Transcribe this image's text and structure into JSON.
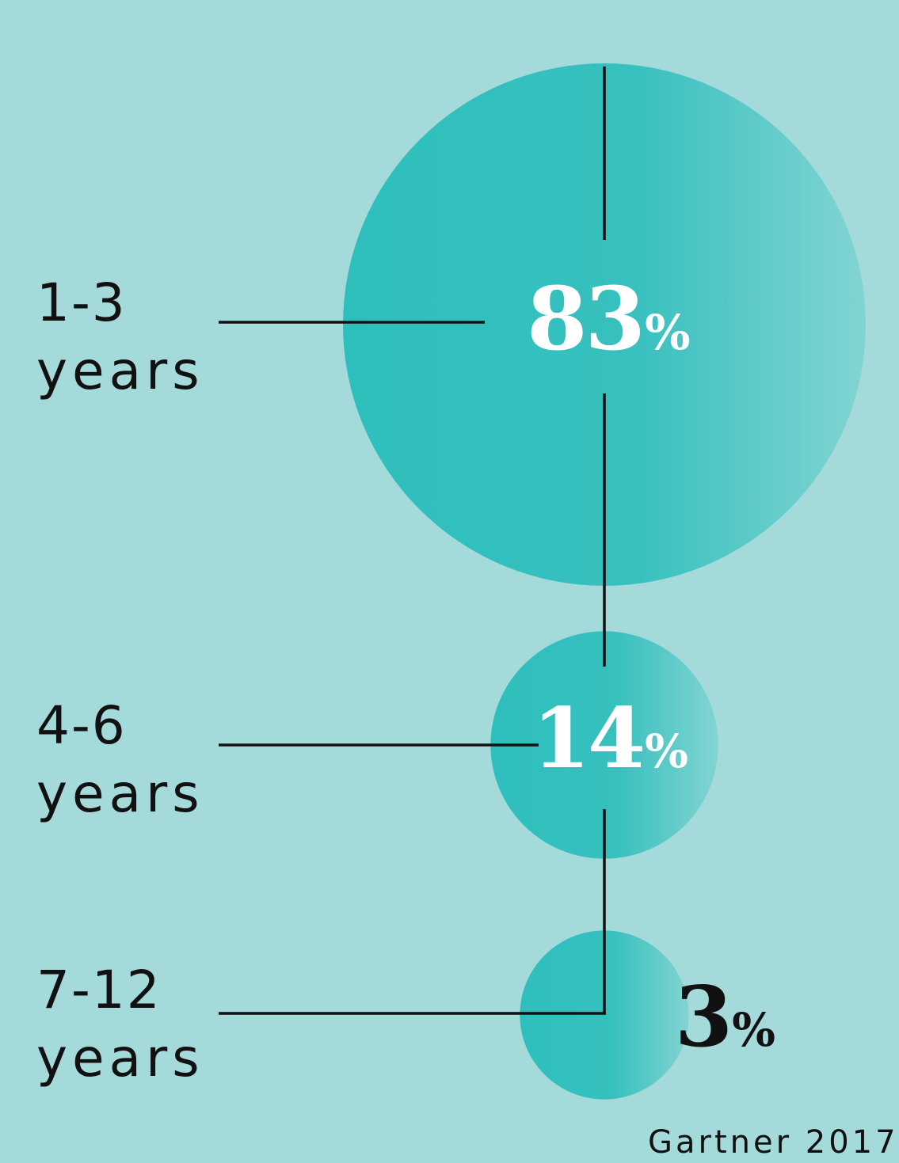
{
  "chart_data": {
    "type": "bubble",
    "categories": [
      "1-3 years",
      "4-6 years",
      "7-12 years"
    ],
    "category_lines": [
      [
        "1-3",
        "years"
      ],
      [
        "4-6",
        "years"
      ],
      [
        "7-12",
        "years"
      ]
    ],
    "values": [
      83,
      14,
      3
    ],
    "value_labels": [
      "83",
      "14",
      "3"
    ],
    "unit": "%",
    "bubble_color": "#2ebfbd",
    "bubble_highlight": "#7fd3d1",
    "background": "#a5dadb",
    "line_color": "#111111",
    "label_color": "#111111",
    "value_color_inside": "#ffffff",
    "value_color_outside": "#111111"
  },
  "source": "Gartner 2017"
}
